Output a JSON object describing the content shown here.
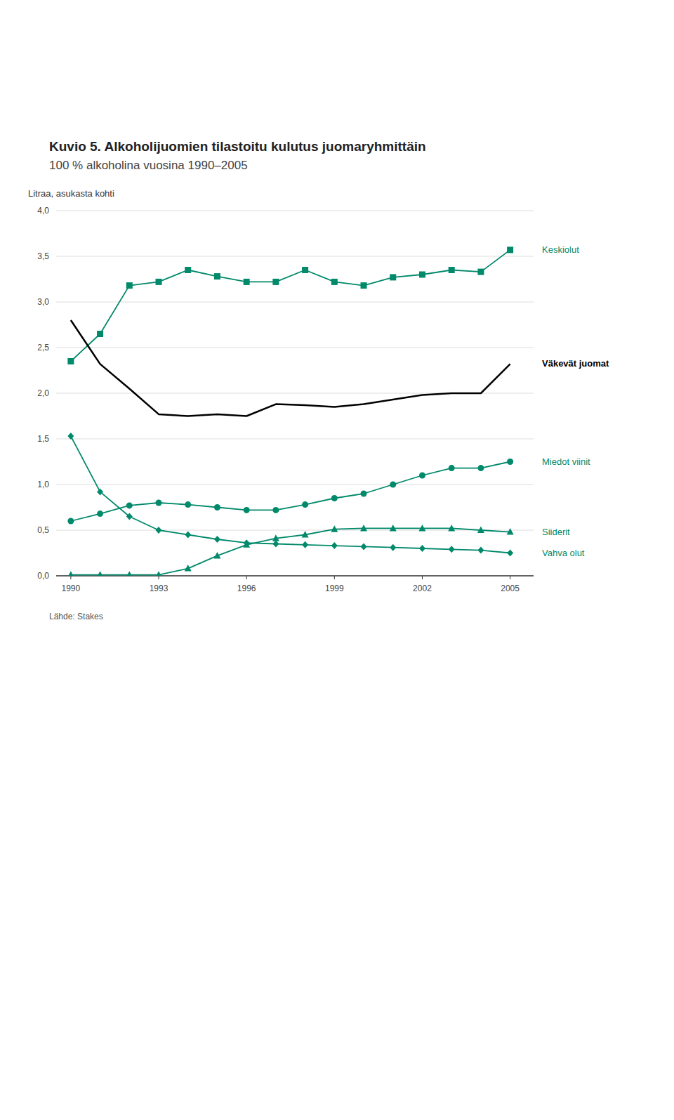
{
  "chart_data": {
    "type": "line",
    "title": "Kuvio 5. Alkoholijuomien tilastoitu kulutus juomaryhmittäin",
    "subtitle": "100 % alkoholina vuosina 1990–2005",
    "y_label": "Litraa, asukasta kohti",
    "annotations": [
      "Lähde: Stakes"
    ],
    "x": [
      1990,
      1991,
      1992,
      1993,
      1994,
      1995,
      1996,
      1997,
      1998,
      1999,
      2000,
      2001,
      2002,
      2003,
      2004,
      2005
    ],
    "series": [
      {
        "name": "Keskiolut",
        "color": "#00896A",
        "marker": "square",
        "values": [
          2.35,
          2.65,
          3.18,
          3.22,
          3.35,
          3.28,
          3.22,
          3.22,
          3.35,
          3.22,
          3.18,
          3.27,
          3.3,
          3.35,
          3.33,
          3.57
        ]
      },
      {
        "name": "Väkevät juomat",
        "color": "#000000",
        "values": [
          2.8,
          2.32,
          2.05,
          1.77,
          1.75,
          1.77,
          1.75,
          1.88,
          1.87,
          1.85,
          1.88,
          1.93,
          1.98,
          2.0,
          2.0,
          2.32
        ]
      },
      {
        "name": "Miedot viinit",
        "color": "#00896A",
        "marker": "circle",
        "values": [
          0.6,
          0.68,
          0.77,
          0.8,
          0.78,
          0.75,
          0.72,
          0.72,
          0.78,
          0.85,
          0.9,
          1.0,
          1.1,
          1.18,
          1.18,
          1.25
        ]
      },
      {
        "name": "Siiderit",
        "color": "#00896A",
        "marker": "triangle",
        "values": [
          0.01,
          0.01,
          0.01,
          0.01,
          0.08,
          0.22,
          0.34,
          0.41,
          0.45,
          0.51,
          0.52,
          0.52,
          0.52,
          0.52,
          0.5,
          0.48
        ]
      },
      {
        "name": "Vahva olut",
        "color": "#00896A",
        "marker": "diamond",
        "values": [
          1.53,
          0.92,
          0.65,
          0.5,
          0.45,
          0.4,
          0.36,
          0.35,
          0.34,
          0.33,
          0.32,
          0.31,
          0.3,
          0.29,
          0.28,
          0.25
        ]
      }
    ],
    "xlim": [
      1989.5,
      2005.8
    ],
    "xticks": [
      1990,
      1993,
      1996,
      1999,
      2002,
      2005
    ],
    "ylim": [
      0,
      4
    ],
    "yticks": [
      {
        "value": 0,
        "label": "0,0"
      },
      {
        "value": 0.5,
        "label": "0,5"
      },
      {
        "value": 1,
        "label": "1,0"
      },
      {
        "value": 1.5,
        "label": "1,5"
      },
      {
        "value": 2,
        "label": "2,0"
      },
      {
        "value": 2.5,
        "label": "2,5"
      },
      {
        "value": 3,
        "label": "3,0"
      },
      {
        "value": 3.5,
        "label": "3,5"
      },
      {
        "value": 4,
        "label": "4,0"
      }
    ],
    "grid": true
  }
}
